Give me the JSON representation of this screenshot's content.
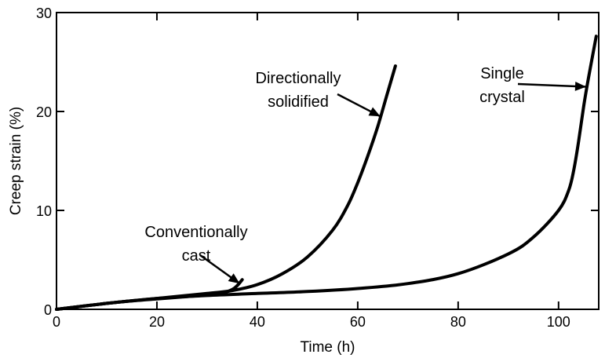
{
  "chart_data": {
    "type": "line",
    "xlabel": "Time (h)",
    "ylabel": "Creep strain (%)",
    "xlim": [
      0,
      108
    ],
    "ylim": [
      0,
      30
    ],
    "xticks": [
      "0",
      "20",
      "40",
      "60",
      "80",
      "100"
    ],
    "yticks": [
      "0",
      "10",
      "20",
      "30"
    ],
    "grid": false,
    "series": [
      {
        "name": "Conventionally cast",
        "x": [
          0,
          5,
          10,
          15,
          20,
          25,
          30,
          33,
          35,
          36,
          37
        ],
        "y": [
          0,
          0.3,
          0.6,
          0.85,
          1.05,
          1.25,
          1.45,
          1.65,
          2.0,
          2.4,
          3.0
        ]
      },
      {
        "name": "Directionally solidified",
        "x": [
          0,
          10,
          20,
          30,
          35,
          40,
          45,
          50,
          55,
          58,
          60,
          62,
          64,
          66,
          67.5
        ],
        "y": [
          0,
          0.6,
          1.1,
          1.6,
          1.9,
          2.5,
          3.6,
          5.3,
          8.0,
          10.5,
          12.8,
          15.5,
          18.5,
          22.0,
          24.6
        ]
      },
      {
        "name": "Single crystal",
        "x": [
          0,
          10,
          20,
          30,
          40,
          50,
          60,
          70,
          80,
          90,
          95,
          100,
          102,
          103,
          104,
          105,
          106,
          107.5
        ],
        "y": [
          0,
          0.6,
          1.1,
          1.4,
          1.6,
          1.8,
          2.1,
          2.6,
          3.6,
          5.6,
          7.3,
          10.0,
          12.0,
          14.0,
          17.0,
          20.5,
          23.5,
          27.6
        ]
      }
    ],
    "annotations": [
      {
        "lines": [
          "Conventionally",
          "cast"
        ],
        "arrow_to": [
          36.5,
          2.6
        ]
      },
      {
        "lines": [
          "Directionally",
          "solidified"
        ],
        "arrow_to": [
          64.5,
          19.5
        ]
      },
      {
        "lines": [
          "Single",
          "crystal"
        ],
        "arrow_to": [
          105.5,
          22.5
        ]
      }
    ]
  }
}
